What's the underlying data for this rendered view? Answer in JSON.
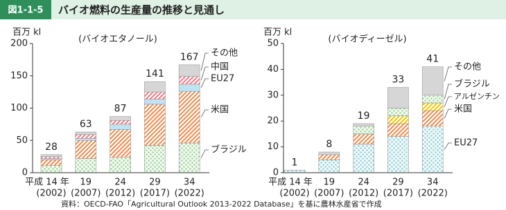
{
  "header": {
    "figure_no": "図1-1-5",
    "title": "バイオ燃料の生産量の推移と見通し"
  },
  "source": "資料：OECD-FAO「Agricultural Outlook 2013-2022 Database」を基に農林水産省で作成",
  "chart_data": [
    {
      "type": "bar",
      "stacked": true,
      "subtitle": "(バイオエタノール)",
      "y_label": "百万 kl",
      "categories": [
        "平成 14 年",
        "19",
        "24",
        "29",
        "34"
      ],
      "category_years": [
        "(2002)",
        "(2007)",
        "(2012)",
        "(2017)",
        "(2022)"
      ],
      "ylim": [
        0,
        200
      ],
      "yticks": [
        0,
        50,
        100,
        150,
        200
      ],
      "totals": [
        28,
        63,
        87,
        141,
        167
      ],
      "series": [
        {
          "name": "ブラジル",
          "color": "#9fd39a",
          "pattern": "dots",
          "values": [
            11,
            22,
            24,
            42,
            46
          ]
        },
        {
          "name": "米国",
          "color": "#f08a4b",
          "pattern": "stripes",
          "values": [
            9,
            28,
            43,
            64,
            80
          ]
        },
        {
          "name": "EU27",
          "color": "#bfe3f2",
          "pattern": "solid",
          "values": [
            2,
            3,
            8,
            8,
            11
          ]
        },
        {
          "name": "中国",
          "color": "#f27a84",
          "pattern": "stripes",
          "values": [
            3,
            6,
            6,
            11,
            12
          ]
        },
        {
          "name": "その他",
          "color": "#d6d6d6",
          "pattern": "solid",
          "values": [
            3,
            4,
            6,
            16,
            18
          ]
        }
      ]
    },
    {
      "type": "bar",
      "stacked": true,
      "subtitle": "(バイオディーゼル)",
      "y_label": "百万 kl",
      "categories": [
        "平成 14 年",
        "19",
        "24",
        "29",
        "34"
      ],
      "category_years": [
        "(2002)",
        "(2007)",
        "(2012)",
        "(2017)",
        "(2022)"
      ],
      "ylim": [
        0,
        50
      ],
      "yticks": [
        0,
        10,
        20,
        30,
        40,
        50
      ],
      "totals": [
        1,
        8,
        19,
        33,
        41
      ],
      "series": [
        {
          "name": "EU27",
          "color": "#8fcde8",
          "pattern": "dots",
          "values": [
            1,
            5,
            11,
            14,
            18
          ]
        },
        {
          "name": "米国",
          "color": "#f08a4b",
          "pattern": "stripes",
          "values": [
            0,
            2,
            4,
            5,
            6
          ]
        },
        {
          "name": "アルゼンチン",
          "color": "#f5c400",
          "pattern": "stripes",
          "values": [
            0,
            0,
            0,
            3,
            3
          ]
        },
        {
          "name": "ブラジル",
          "color": "#9fd39a",
          "pattern": "dots",
          "values": [
            0,
            0,
            3,
            3,
            3
          ]
        },
        {
          "name": "その他",
          "color": "#d6d6d6",
          "pattern": "solid",
          "values": [
            0,
            1,
            1,
            8,
            11
          ]
        }
      ]
    }
  ]
}
